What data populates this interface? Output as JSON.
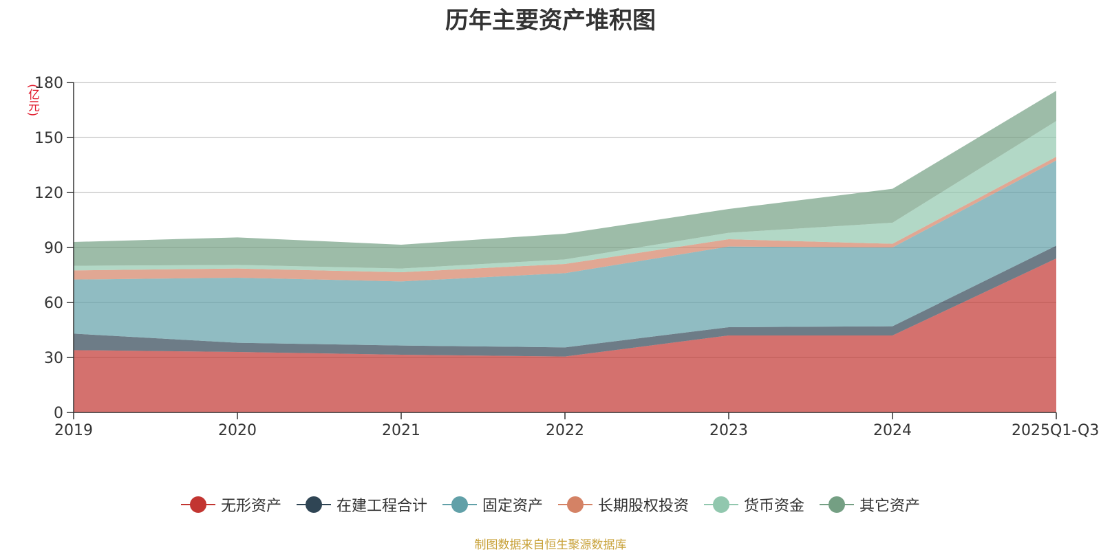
{
  "chart_data": {
    "type": "area",
    "stacked": true,
    "title": "历年主要资产堆积图",
    "unit_label": "(亿元)",
    "categories": [
      "2019",
      "2020",
      "2021",
      "2022",
      "2023",
      "2024",
      "2025Q1-Q3"
    ],
    "ylim": [
      0,
      180
    ],
    "yticks": [
      0,
      30,
      60,
      90,
      120,
      150,
      180
    ],
    "grid": true,
    "legend_position": "bottom",
    "series": [
      {
        "name": "无形资产",
        "color": "#c23531",
        "values": [
          34,
          33,
          31.5,
          30.5,
          42,
          42,
          84
        ]
      },
      {
        "name": "在建工程合计",
        "color": "#2f4554",
        "values": [
          9,
          5,
          5,
          5,
          4.5,
          5,
          7
        ]
      },
      {
        "name": "固定资产",
        "color": "#61a0a8",
        "values": [
          29.5,
          35.5,
          35,
          40.5,
          44,
          43,
          46.5
        ]
      },
      {
        "name": "长期股权投资",
        "color": "#d48265",
        "values": [
          5,
          5,
          5,
          5,
          4,
          2,
          2
        ]
      },
      {
        "name": "货币资金",
        "color": "#91c7ae",
        "values": [
          2.5,
          2,
          2,
          2.5,
          3.5,
          11.5,
          19.5
        ]
      },
      {
        "name": "其它资产",
        "color": "#749f83",
        "values": [
          13,
          15,
          13,
          14,
          13,
          18.5,
          16.5
        ]
      }
    ],
    "source": "制图数据来自恒生聚源数据库"
  }
}
